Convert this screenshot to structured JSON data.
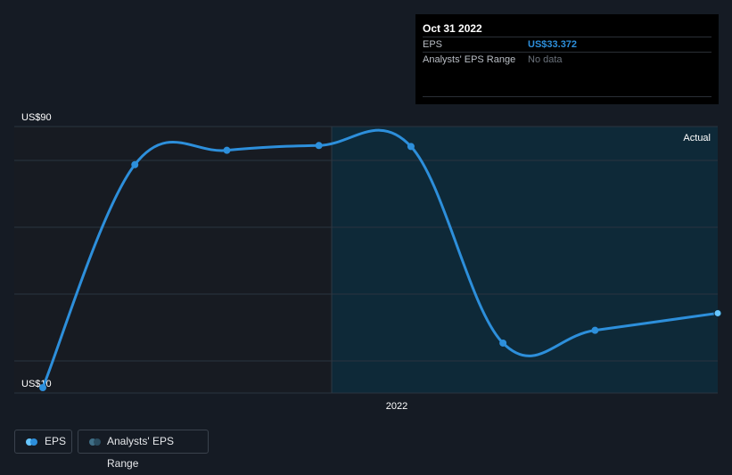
{
  "tooltip": {
    "date": "Oct 31 2022",
    "rows": [
      {
        "label": "EPS",
        "value": "US$33.372"
      },
      {
        "label": "Analysts' EPS Range",
        "value": "No data"
      }
    ]
  },
  "chart_data": {
    "type": "line",
    "y_axis": {
      "top_label": "US$90",
      "bottom_label": "US$10",
      "ylim": [
        10,
        90
      ]
    },
    "x_tick_labels": [
      "2022"
    ],
    "region_label": "Actual",
    "series": [
      {
        "name": "EPS",
        "color": "#2d8fdb",
        "x": [
          "2020-12",
          "2021-03",
          "2021-06",
          "2021-09",
          "2021-12",
          "2022-03",
          "2022-06",
          "2022-10"
        ],
        "values": [
          10,
          80,
          84.5,
          86,
          85.7,
          24,
          28,
          33.372
        ]
      }
    ],
    "grid": true
  },
  "legend": {
    "items": [
      {
        "label": "EPS",
        "color_a": "#67c6ff",
        "color_b": "#2d8fdb"
      },
      {
        "label": "Analysts' EPS Range",
        "color_a": "#3f6e86",
        "color_b": "#2a4b5e"
      }
    ]
  }
}
